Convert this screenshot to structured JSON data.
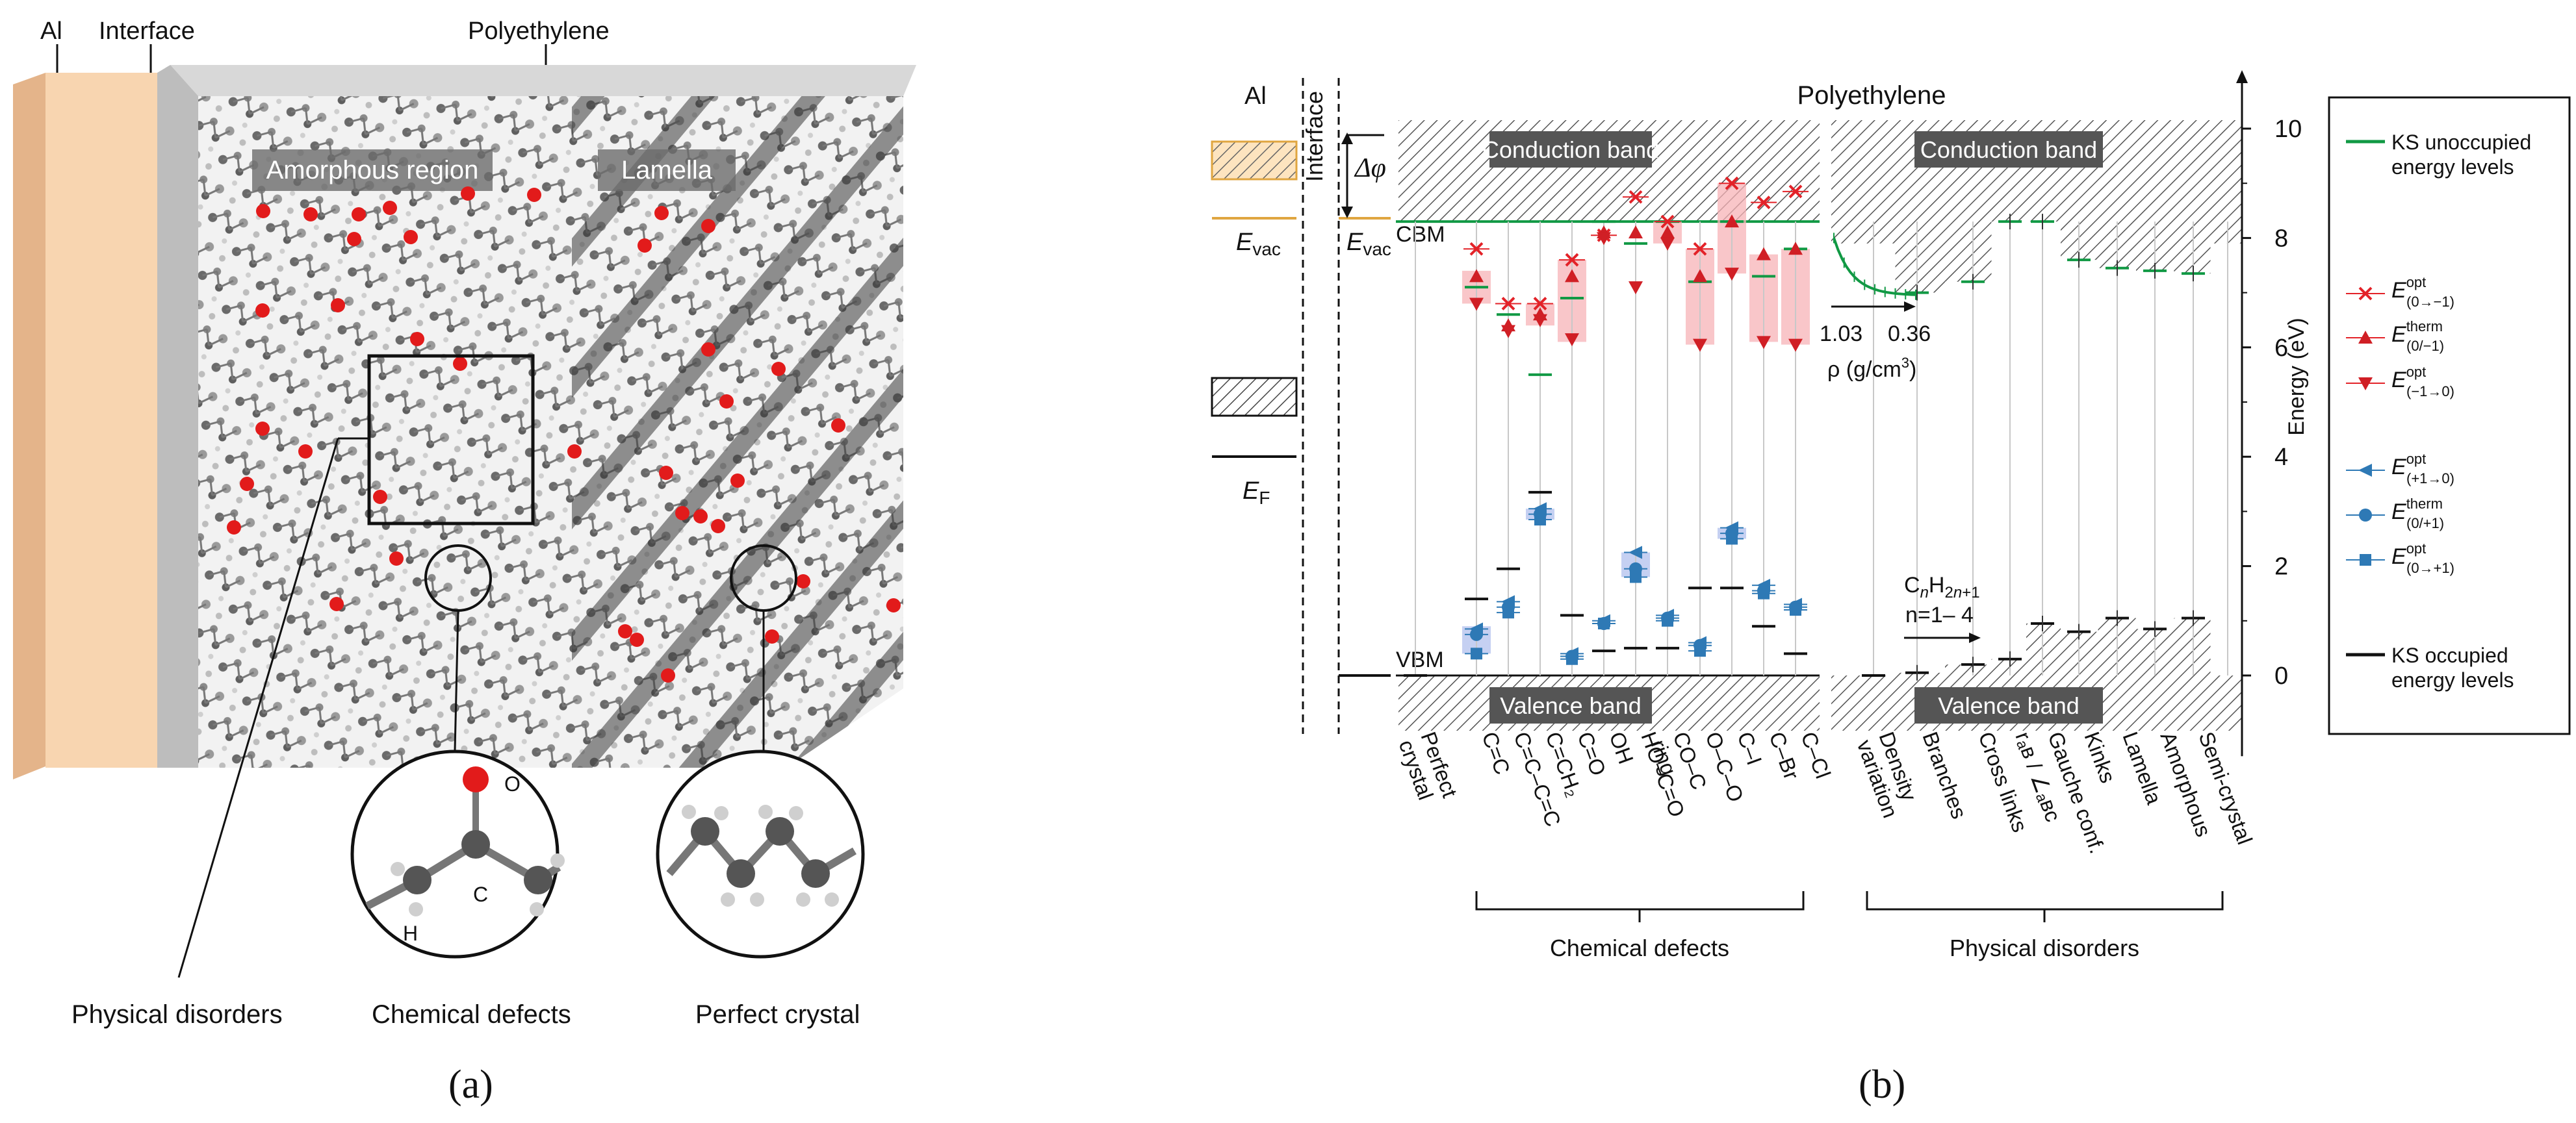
{
  "panel_a": {
    "label": "(a)",
    "top_labels": {
      "al": "Al",
      "interface": "Interface",
      "polyethylene": "Polyethylene"
    },
    "region_labels": {
      "amorphous": "Amorphous region",
      "lamella": "Lamella"
    },
    "bottom_labels": {
      "physical": "Physical disorders",
      "chemical": "Chemical defects",
      "perfect": "Perfect crystal"
    },
    "atom_labels": {
      "o": "O",
      "c": "C",
      "h": "H"
    },
    "colors": {
      "al_slab": "#F8D5B0",
      "interface_slab": "#B9B9B9",
      "oxygen": "#E21B1B",
      "carbon": "#555555"
    }
  },
  "panel_b": {
    "label": "(b)",
    "title": "Polyethylene",
    "left_labels": {
      "al": "Al",
      "interface": "Interface",
      "evac": "E",
      "evac_sub": "vac",
      "ef": "E",
      "ef_sub": "F",
      "delta_phi": "Δφ",
      "cbm": "CBM",
      "vbm": "VBM"
    },
    "band_labels": {
      "conduction": "Conduction band",
      "valence": "Valence band"
    },
    "annotations": {
      "rho_high": "1.03",
      "rho_low": "0.36",
      "rho_label": "ρ (g/cm",
      "rho_unit_sup": "3",
      "rho_close": ")",
      "formula": "CnH2n+1",
      "n_range": "n=1– 4"
    },
    "group_labels": {
      "chemical": "Chemical defects",
      "physical": "Physical disorders"
    },
    "legend": [
      {
        "key": "ks_unocc",
        "text": "KS unoccupied",
        "text2": "energy levels",
        "color": "#119944"
      },
      {
        "key": "e_opt_0m1",
        "sym": "E",
        "sup": "opt",
        "sub": "(0→−1)",
        "color": "#E32228"
      },
      {
        "key": "e_therm_0m1",
        "sym": "E",
        "sup": "therm",
        "sub": "(0/−1)",
        "color": "#C8161D"
      },
      {
        "key": "e_opt_m10",
        "sym": "E",
        "sup": "opt",
        "sub": "(−1→0)",
        "color": "#C8161D"
      },
      {
        "key": "e_opt_p10",
        "sym": "E",
        "sup": "opt",
        "sub": "(+1→0)",
        "color": "#2E79B5"
      },
      {
        "key": "e_therm_0p1",
        "sym": "E",
        "sup": "therm",
        "sub": "(0/+1)",
        "color": "#2E79B5"
      },
      {
        "key": "e_opt_0p1",
        "sym": "E",
        "sup": "opt",
        "sub": "(0→+1)",
        "color": "#2E79B5"
      },
      {
        "key": "ks_occ",
        "text": "KS occupied",
        "text2": "energy levels",
        "color": "#111111"
      }
    ]
  },
  "chart_data": {
    "type": "scatter",
    "title": "Polyethylene",
    "ylabel": "Energy (eV)",
    "ylim": [
      -1,
      10.5
    ],
    "yticks": [
      0,
      2,
      4,
      6,
      8,
      10
    ],
    "cbm": 8.3,
    "vbm": 0,
    "categories": [
      "Perfect crystal",
      "C=C",
      "C=C–C=C",
      "C=CH2",
      "C=O",
      "OH",
      "HO–C=O",
      "CO–Cring",
      "O–C–O",
      "C–I",
      "C–Br",
      "C–Cl",
      "Density variation",
      "Branches",
      "Cross links",
      "rAB / ∠ABC",
      "Gauche conf.",
      "Kinks",
      "Lamella",
      "Amorphous",
      "Semi-crystal"
    ],
    "category_lines": [
      [
        "Perfect",
        "crystal"
      ],
      [
        "C=C"
      ],
      [
        "C=C–C=C"
      ],
      [
        "C=CH₂"
      ],
      [
        "C=O"
      ],
      [
        "OH"
      ],
      [
        "HO–C=O"
      ],
      [
        "CO–C",
        "ring"
      ],
      [
        "O–C–O"
      ],
      [
        "C–I"
      ],
      [
        "C–Br"
      ],
      [
        "C–Cl"
      ],
      [
        "Density",
        "variation"
      ],
      [
        "Branches"
      ],
      [
        "Cross links"
      ],
      [
        "rₐʙ / ∠ₐʙᴄ"
      ],
      [
        "Gauche conf."
      ],
      [
        "Kinks"
      ],
      [
        "Lamella"
      ],
      [
        "Amorphous"
      ],
      [
        "Semi-crystal"
      ]
    ],
    "series": [
      {
        "name": "KS unoccupied energy levels",
        "values": [
          null,
          7.1,
          6.6,
          5.5,
          6.9,
          8.3,
          7.9,
          8.3,
          7.2,
          8.3,
          7.3,
          7.8,
          null,
          7.0,
          7.2,
          8.3,
          8.3,
          7.6,
          7.45,
          7.4,
          7.35
        ]
      },
      {
        "name": "E(0→−1) opt",
        "values": [
          null,
          7.8,
          6.8,
          6.8,
          7.6,
          8.05,
          8.75,
          8.3,
          7.8,
          9.0,
          8.65,
          8.85,
          null,
          null,
          null,
          null,
          null,
          null,
          null,
          null,
          null
        ]
      },
      {
        "name": "E(0/−1) therm",
        "values": [
          null,
          7.3,
          6.4,
          6.6,
          7.3,
          8.1,
          8.1,
          8.1,
          7.3,
          8.3,
          7.7,
          7.8,
          null,
          null,
          null,
          null,
          null,
          null,
          null,
          null,
          null
        ]
      },
      {
        "name": "E(−1→0) opt",
        "values": [
          null,
          6.8,
          6.3,
          6.5,
          6.15,
          8.0,
          7.1,
          7.9,
          6.05,
          7.35,
          6.1,
          6.05,
          null,
          null,
          null,
          null,
          null,
          null,
          null,
          null,
          null
        ]
      },
      {
        "name": "E(+1→0) opt",
        "values": [
          null,
          0.85,
          1.35,
          3.05,
          0.4,
          1.0,
          2.25,
          1.1,
          0.6,
          2.7,
          1.65,
          1.3,
          null,
          null,
          null,
          null,
          null,
          null,
          null,
          null,
          null
        ]
      },
      {
        "name": "E(0/+1) therm",
        "values": [
          null,
          0.75,
          1.25,
          2.95,
          0.35,
          0.95,
          1.95,
          1.05,
          0.55,
          2.6,
          1.55,
          1.25,
          null,
          null,
          null,
          null,
          null,
          null,
          null,
          null,
          null
        ]
      },
      {
        "name": "E(0→+1) opt",
        "values": [
          null,
          0.4,
          1.15,
          2.85,
          0.3,
          0.95,
          1.8,
          1.0,
          0.45,
          2.5,
          1.5,
          1.2,
          null,
          null,
          null,
          null,
          null,
          null,
          null,
          null,
          null
        ]
      },
      {
        "name": "KS occupied energy levels",
        "values": [
          0,
          1.4,
          1.95,
          3.35,
          1.1,
          0.45,
          0.5,
          0.5,
          1.6,
          1.6,
          0.9,
          0.4,
          0,
          0.05,
          0.2,
          0.3,
          0.95,
          0.8,
          1.05,
          0.85,
          1.05
        ]
      }
    ],
    "density_variation_curve": {
      "rho": [
        1.03,
        0.36
      ],
      "energy_start": 8.0,
      "energy_end": 6.95
    },
    "pink_spans": [
      [
        1,
        6.8,
        7.4
      ],
      [
        3,
        6.4,
        6.8
      ],
      [
        4,
        6.1,
        7.6
      ],
      [
        7,
        7.9,
        8.3
      ],
      [
        8,
        6.05,
        7.8
      ],
      [
        9,
        7.35,
        9.0
      ],
      [
        10,
        6.1,
        7.7
      ],
      [
        11,
        6.05,
        7.8
      ]
    ],
    "blue_spans": [
      [
        1,
        0.4,
        0.9
      ],
      [
        3,
        2.85,
        3.05
      ],
      [
        6,
        1.8,
        2.25
      ],
      [
        9,
        2.5,
        2.7
      ]
    ]
  }
}
